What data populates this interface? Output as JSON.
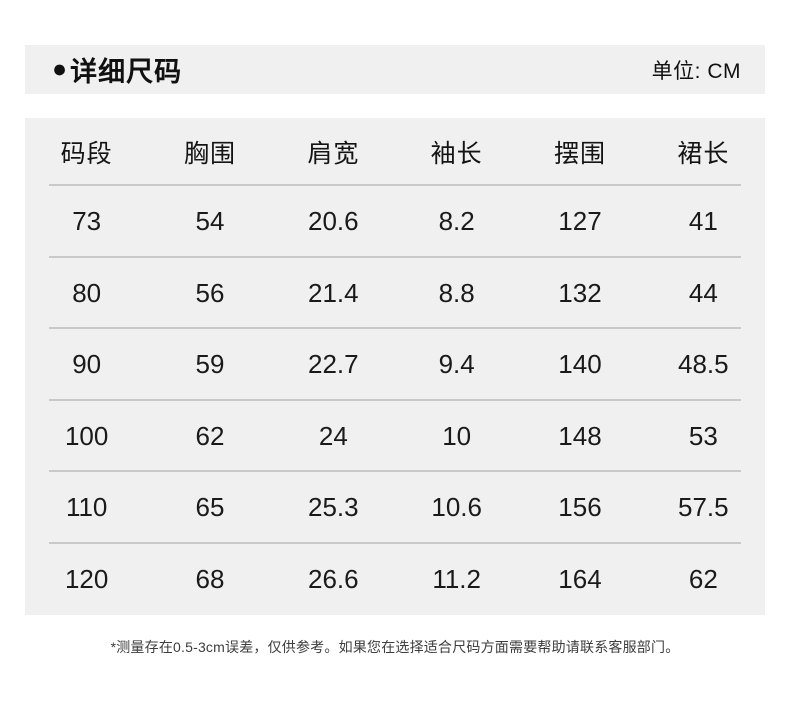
{
  "header": {
    "bullet": "●",
    "title": "详细尺码",
    "unit_label": "单位: CM"
  },
  "chart_data": {
    "type": "table",
    "title": "详细尺码",
    "unit": "CM",
    "columns": [
      "码段",
      "胸围",
      "肩宽",
      "袖长",
      "摆围",
      "裙长"
    ],
    "rows": [
      [
        "73",
        "54",
        "20.6",
        "8.2",
        "127",
        "41"
      ],
      [
        "80",
        "56",
        "21.4",
        "8.8",
        "132",
        "44"
      ],
      [
        "90",
        "59",
        "22.7",
        "9.4",
        "140",
        "48.5"
      ],
      [
        "100",
        "62",
        "24",
        "10",
        "148",
        "53"
      ],
      [
        "110",
        "65",
        "25.3",
        "10.6",
        "156",
        "57.5"
      ],
      [
        "120",
        "68",
        "26.6",
        "11.2",
        "164",
        "62"
      ]
    ]
  },
  "footer": {
    "note": "*测量存在0.5-3cm误差，仅供参考。如果您在选择适合尺码方面需要帮助请联系客服部门。"
  },
  "colors": {
    "panel_bg": "#f0f0f0",
    "text": "#141414",
    "divider": "#c9c9c9"
  }
}
